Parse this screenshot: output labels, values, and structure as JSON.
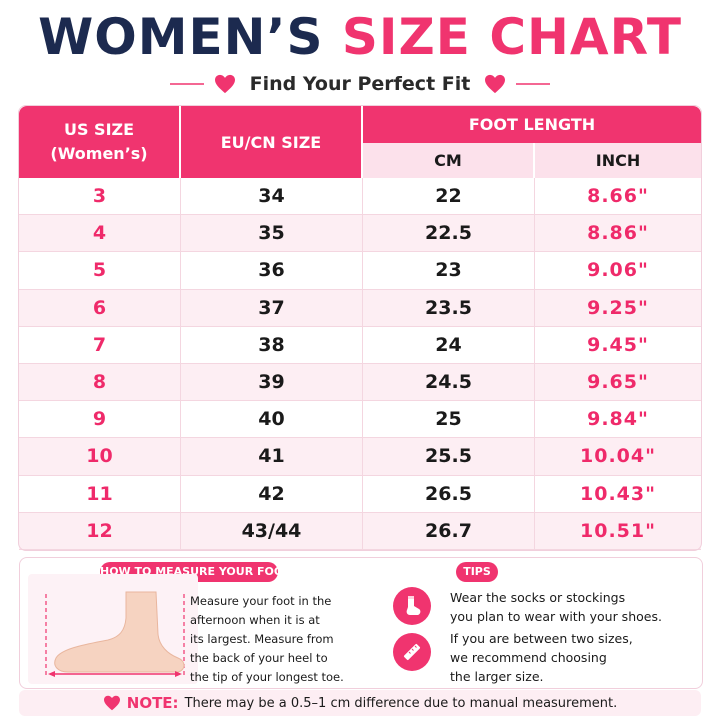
{
  "title": {
    "part1": "WOMEN’S",
    "part2": "SIZE CHART"
  },
  "subtitle": "Find Your Perfect Fit",
  "colors": {
    "accent": "#f0346f",
    "navy": "#1c2a4f",
    "header_light": "#fce1eb",
    "row_alt": "#fdeef3"
  },
  "table": {
    "headers": {
      "us_line1": "US SIZE",
      "us_line2": "(Women’s)",
      "eu": "EU/CN SIZE",
      "foot_length": "FOOT LENGTH",
      "cm": "CM",
      "inch": "INCH"
    },
    "rows": [
      {
        "us": "3",
        "eu": "34",
        "cm": "22",
        "inch": "8.66\""
      },
      {
        "us": "4",
        "eu": "35",
        "cm": "22.5",
        "inch": "8.86\""
      },
      {
        "us": "5",
        "eu": "36",
        "cm": "23",
        "inch": "9.06\""
      },
      {
        "us": "6",
        "eu": "37",
        "cm": "23.5",
        "inch": "9.25\""
      },
      {
        "us": "7",
        "eu": "38",
        "cm": "24",
        "inch": "9.45\""
      },
      {
        "us": "8",
        "eu": "39",
        "cm": "24.5",
        "inch": "9.65\""
      },
      {
        "us": "9",
        "eu": "40",
        "cm": "25",
        "inch": "9.84\""
      },
      {
        "us": "10",
        "eu": "41",
        "cm": "25.5",
        "inch": "10.04\""
      },
      {
        "us": "11",
        "eu": "42",
        "cm": "26.5",
        "inch": "10.43\""
      },
      {
        "us": "12",
        "eu": "43/44",
        "cm": "26.7",
        "inch": "10.51\""
      }
    ]
  },
  "measure": {
    "label": "HOW TO MEASURE YOUR FOOT",
    "lines": [
      "Measure your foot in the",
      "afternoon when it is at",
      "its largest. Measure from",
      "the back of your heel to",
      "the tip of your longest toe."
    ],
    "icon": "foot-measure-illustration"
  },
  "tips": {
    "label": "TIPS",
    "items": [
      {
        "icon": "sock-icon",
        "lines": [
          "Wear the socks or stockings",
          "you plan to wear with your shoes."
        ]
      },
      {
        "icon": "ruler-icon",
        "lines": [
          "If you are between two sizes,",
          "we recommend choosing",
          "the larger size."
        ]
      }
    ]
  },
  "note": {
    "label": "NOTE:",
    "text": "There may be a 0.5–1 cm difference due to manual measurement.",
    "icon": "heart-icon"
  }
}
